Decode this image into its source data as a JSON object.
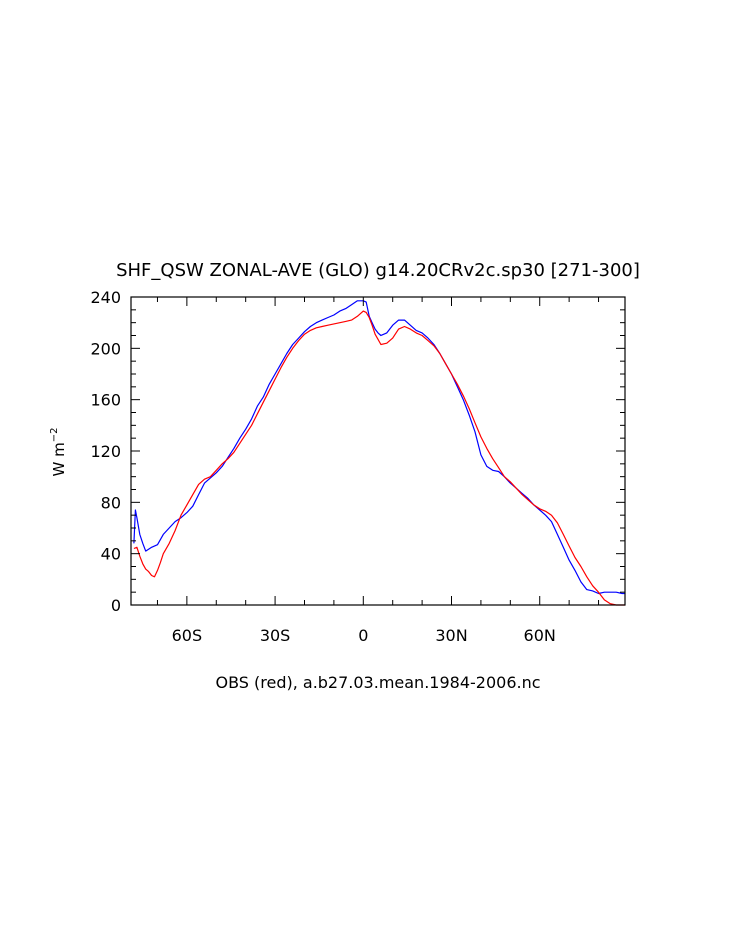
{
  "chart_data": {
    "type": "line",
    "title": "SHF_QSW ZONAL-AVE (GLO) g14.20CRv2c.sp30 [271-300]",
    "xlabel": "OBS (red), a.b27.03.mean.1984-2006.nc",
    "ylabel_main": "W  m",
    "ylabel_sup": "−2",
    "xlim": [
      -79,
      89
    ],
    "ylim": [
      0,
      240
    ],
    "x_ticks": [
      {
        "value": -60,
        "label": "60S"
      },
      {
        "value": -30,
        "label": "30S"
      },
      {
        "value": 0,
        "label": "0"
      },
      {
        "value": 30,
        "label": "30N"
      },
      {
        "value": 60,
        "label": "60N"
      }
    ],
    "y_ticks": [
      {
        "value": 0,
        "label": "0"
      },
      {
        "value": 40,
        "label": "40"
      },
      {
        "value": 80,
        "label": "80"
      },
      {
        "value": 120,
        "label": "120"
      },
      {
        "value": 160,
        "label": "160"
      },
      {
        "value": 200,
        "label": "200"
      },
      {
        "value": 240,
        "label": "240"
      }
    ],
    "series": [
      {
        "color": "#0000ff",
        "x": [
          -78,
          -77.5,
          -77,
          -76,
          -75,
          -74,
          -72,
          -70,
          -68,
          -66,
          -64,
          -62,
          -60,
          -58,
          -56,
          -54,
          -52,
          -50,
          -48,
          -46,
          -44,
          -42,
          -40,
          -38,
          -36,
          -34,
          -32,
          -30,
          -28,
          -26,
          -24,
          -22,
          -20,
          -18,
          -16,
          -14,
          -12,
          -10,
          -8,
          -6,
          -4,
          -2,
          0,
          1,
          2,
          3,
          4,
          5,
          6,
          8,
          10,
          12,
          14,
          16,
          18,
          20,
          22,
          24,
          26,
          28,
          30,
          32,
          34,
          36,
          38,
          40,
          42,
          44,
          46,
          48,
          50,
          52,
          54,
          56,
          58,
          60,
          62,
          64,
          66,
          68,
          70,
          72,
          74,
          76,
          78,
          80,
          82,
          84,
          86,
          88,
          89
        ],
        "y": [
          48,
          74,
          68,
          55,
          48,
          42,
          45,
          47,
          55,
          60,
          65,
          68,
          72,
          77,
          86,
          95,
          99,
          103,
          108,
          115,
          122,
          130,
          137,
          145,
          155,
          162,
          172,
          180,
          188,
          196,
          203,
          208,
          213,
          217,
          220,
          222,
          224,
          226,
          229,
          231,
          234,
          237,
          237,
          236,
          225,
          220,
          215,
          212,
          210,
          212,
          218,
          222,
          222,
          218,
          214,
          212,
          208,
          203,
          196,
          188,
          180,
          170,
          160,
          148,
          135,
          117,
          108,
          105,
          104,
          100,
          95,
          91,
          87,
          83,
          78,
          74,
          70,
          65,
          55,
          45,
          35,
          27,
          18,
          12,
          11,
          9,
          10,
          10,
          10,
          9,
          9
        ]
      },
      {
        "color": "#ff0000",
        "x": [
          -78,
          -77,
          -76,
          -75,
          -74,
          -73,
          -72,
          -71,
          -70,
          -69,
          -68,
          -66,
          -64,
          -62,
          -60,
          -58,
          -56,
          -54,
          -52,
          -50,
          -48,
          -46,
          -44,
          -42,
          -40,
          -38,
          -36,
          -34,
          -32,
          -30,
          -28,
          -26,
          -24,
          -22,
          -20,
          -18,
          -16,
          -14,
          -12,
          -10,
          -8,
          -6,
          -4,
          -2,
          0,
          1,
          2,
          3,
          4,
          5,
          6,
          8,
          10,
          12,
          14,
          16,
          18,
          20,
          22,
          24,
          26,
          28,
          30,
          32,
          34,
          36,
          38,
          40,
          42,
          44,
          46,
          48,
          50,
          52,
          54,
          56,
          58,
          60,
          62,
          64,
          66,
          68,
          70,
          72,
          74,
          76,
          78,
          80,
          82,
          84,
          86,
          88,
          89
        ],
        "y": [
          44,
          45,
          38,
          32,
          28,
          26,
          23,
          22,
          27,
          33,
          40,
          48,
          58,
          70,
          78,
          86,
          94,
          98,
          100,
          105,
          110,
          114,
          119,
          126,
          133,
          140,
          149,
          158,
          167,
          176,
          185,
          193,
          200,
          206,
          211,
          214,
          216,
          217,
          218,
          219,
          220,
          221,
          222,
          225,
          229,
          228,
          224,
          218,
          211,
          207,
          203,
          204,
          208,
          215,
          217,
          215,
          212,
          210,
          206,
          202,
          196,
          188,
          180,
          172,
          163,
          153,
          142,
          131,
          122,
          114,
          107,
          100,
          96,
          91,
          86,
          82,
          78,
          75,
          73,
          70,
          64,
          55,
          46,
          37,
          30,
          22,
          15,
          10,
          4,
          1,
          0,
          0,
          0
        ]
      }
    ]
  }
}
